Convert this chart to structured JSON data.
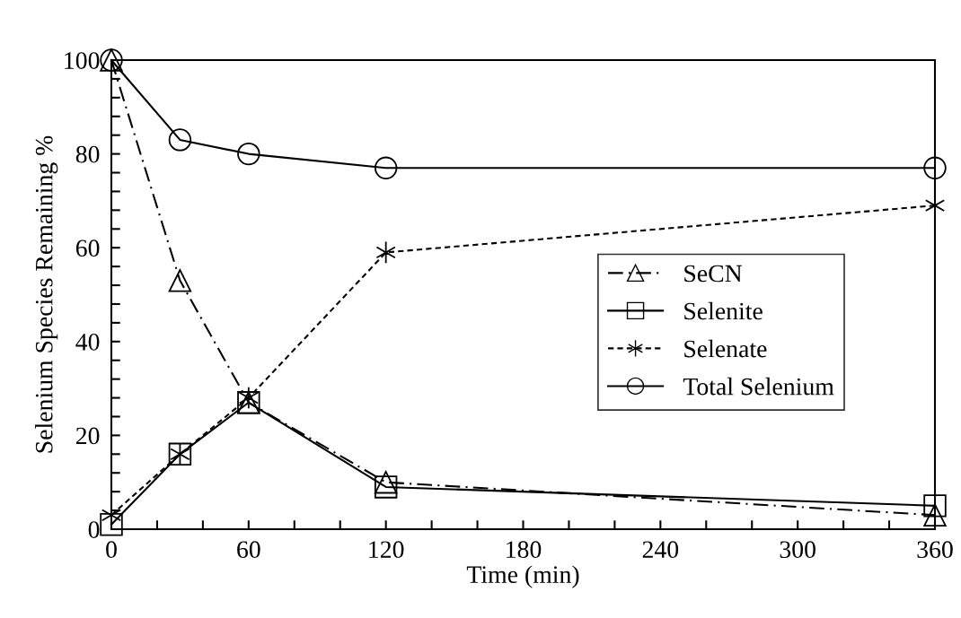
{
  "chart_data": {
    "type": "line",
    "xlabel": "Time (min)",
    "ylabel": "Selenium Species Remaining %",
    "x": [
      0,
      30,
      60,
      120,
      360
    ],
    "series": [
      {
        "name": "SeCN",
        "color": "#000000",
        "values": [
          100,
          53,
          27,
          10,
          3
        ],
        "marker": "triangle",
        "line_style": "dashdot"
      },
      {
        "name": "Selenite",
        "color": "#000000",
        "values": [
          1,
          16,
          27,
          9,
          5
        ],
        "marker": "square",
        "line_style": "solid"
      },
      {
        "name": "Selenate",
        "color": "#000000",
        "values": [
          3,
          16,
          28,
          59,
          69
        ],
        "marker": "cross",
        "line_style": "dashed"
      },
      {
        "name": "Total Selenium",
        "color": "#000000",
        "values": [
          100,
          83,
          80,
          77,
          77
        ],
        "marker": "circle",
        "line_style": "solid"
      }
    ],
    "xlim": [
      0,
      360
    ],
    "ylim": [
      0,
      100
    ],
    "xticks": [
      0,
      {
        "value": 20,
        "label": null
      },
      {
        "value": 40,
        "label": null
      },
      60,
      {
        "value": 80,
        "label": null
      },
      {
        "value": 100,
        "label": null
      },
      120,
      {
        "value": 140,
        "label": null
      },
      {
        "value": 160,
        "label": null
      },
      180,
      {
        "value": 200,
        "label": null
      },
      {
        "value": 220,
        "label": null
      },
      240,
      {
        "value": 260,
        "label": null
      },
      {
        "value": 280,
        "label": null
      },
      300,
      {
        "value": 320,
        "label": null
      },
      {
        "value": 340,
        "label": null
      },
      360
    ],
    "yticks": [
      0,
      {
        "value": 4,
        "label": null
      },
      {
        "value": 8,
        "label": null
      },
      {
        "value": 12,
        "label": null
      },
      {
        "value": 16,
        "label": null
      },
      20,
      {
        "value": 24,
        "label": null
      },
      {
        "value": 28,
        "label": null
      },
      {
        "value": 32,
        "label": null
      },
      {
        "value": 36,
        "label": null
      },
      40,
      {
        "value": 44,
        "label": null
      },
      {
        "value": 48,
        "label": null
      },
      {
        "value": 52,
        "label": null
      },
      {
        "value": 56,
        "label": null
      },
      60,
      {
        "value": 64,
        "label": null
      },
      {
        "value": 68,
        "label": null
      },
      {
        "value": 72,
        "label": null
      },
      {
        "value": 76,
        "label": null
      },
      80,
      {
        "value": 84,
        "label": null
      },
      {
        "value": 88,
        "label": null
      },
      {
        "value": 92,
        "label": null
      },
      {
        "value": 96,
        "label": null
      },
      100
    ],
    "grid": false,
    "legend": "right"
  }
}
